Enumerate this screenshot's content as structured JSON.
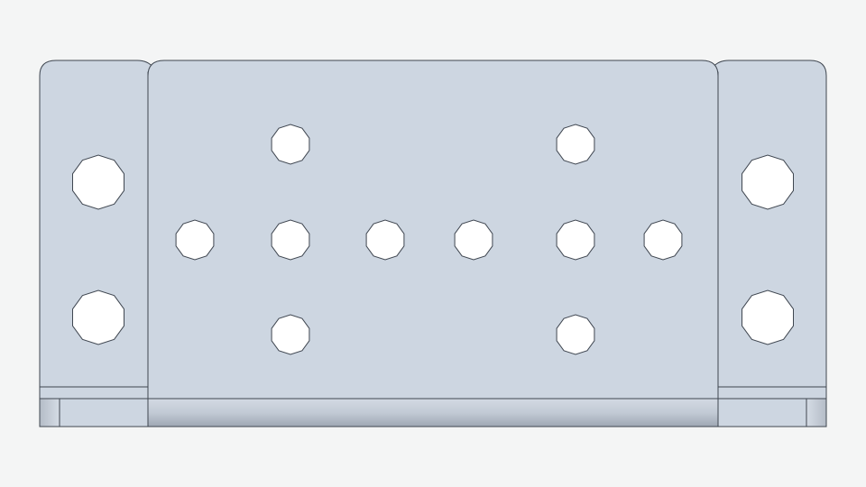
{
  "viewport": {
    "background": "#f4f5f5"
  },
  "part": {
    "face_color": "#cdd6e1",
    "edge_color": "#3f4650",
    "hole_color": "#ffffff",
    "shade_light": "#dfe5ec",
    "shade_dark": "#a2aab5",
    "side_flange_holes_each": 2,
    "center_plate_holes": 10
  }
}
